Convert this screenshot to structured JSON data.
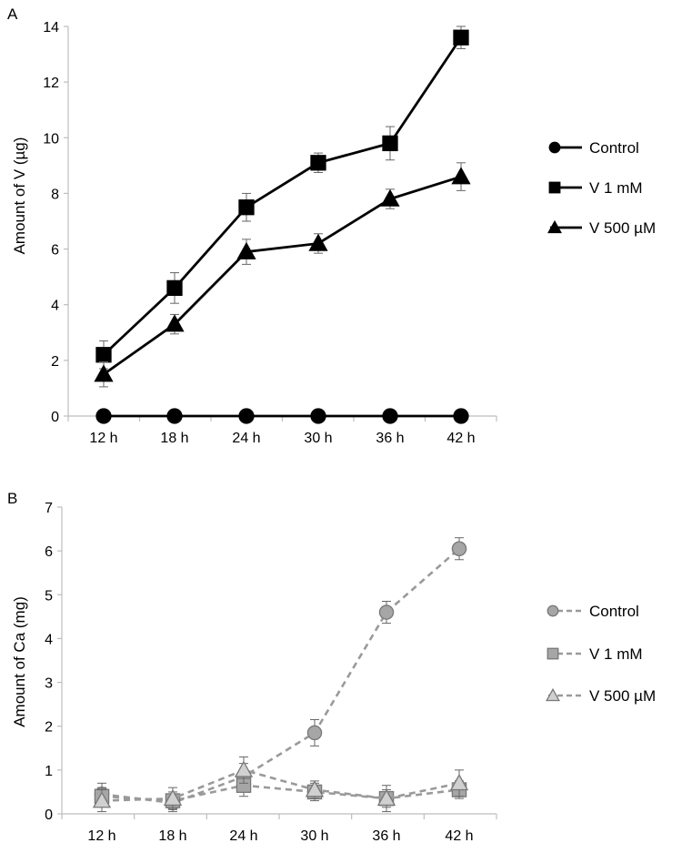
{
  "chart_data": [
    {
      "type": "line",
      "panel_label": "A",
      "ylabel": "Amount of V  (µg)",
      "categories": [
        "12 h",
        "18 h",
        "24 h",
        "30 h",
        "36 h",
        "42 h"
      ],
      "ylim": [
        0,
        14
      ],
      "yticks": [
        "0",
        "2",
        "4",
        "6",
        "8",
        "10",
        "12",
        "14"
      ],
      "legend_position": "right",
      "series": [
        {
          "name": "Control",
          "marker": "circle",
          "line": "solid",
          "color": "#000000",
          "fill": "#000000",
          "values": [
            0,
            0,
            0,
            0,
            0,
            0
          ],
          "errors": [
            0,
            0,
            0,
            0,
            0,
            0
          ]
        },
        {
          "name": "V 1 mM",
          "marker": "square",
          "line": "solid",
          "color": "#000000",
          "fill": "#000000",
          "values": [
            2.2,
            4.6,
            7.5,
            9.1,
            9.8,
            13.6
          ],
          "errors": [
            0.5,
            0.55,
            0.5,
            0.35,
            0.6,
            0.4
          ]
        },
        {
          "name": "V 500 µM",
          "marker": "triangle",
          "line": "solid",
          "color": "#000000",
          "fill": "#000000",
          "values": [
            1.5,
            3.3,
            5.9,
            6.2,
            7.8,
            8.6
          ],
          "errors": [
            0.45,
            0.35,
            0.45,
            0.35,
            0.35,
            0.5
          ]
        }
      ]
    },
    {
      "type": "line",
      "panel_label": "B",
      "ylabel": "Amount of Ca (mg)",
      "categories": [
        "12 h",
        "18 h",
        "24 h",
        "30 h",
        "36 h",
        "42 h"
      ],
      "ylim": [
        0,
        7
      ],
      "yticks": [
        "0",
        "1",
        "2",
        "3",
        "4",
        "5",
        "6",
        "7"
      ],
      "legend_position": "right",
      "series": [
        {
          "name": "Control",
          "marker": "circle",
          "line": "dashed",
          "color": "#9a9a9a",
          "fill": "#a6a6a6",
          "values": [
            0.45,
            0.25,
            0.85,
            1.85,
            4.6,
            6.05
          ],
          "errors": [
            0.25,
            0.2,
            0.3,
            0.3,
            0.25,
            0.25
          ]
        },
        {
          "name": "V 1 mM",
          "marker": "square",
          "line": "dashed",
          "color": "#9a9a9a",
          "fill": "#a6a6a6",
          "values": [
            0.4,
            0.3,
            0.65,
            0.5,
            0.35,
            0.55
          ],
          "errors": [
            0.2,
            0.2,
            0.25,
            0.2,
            0.2,
            0.2
          ]
        },
        {
          "name": "V 500 µM",
          "marker": "triangle",
          "line": "dashed",
          "color": "#9a9a9a",
          "fill": "#d0d0d0",
          "values": [
            0.3,
            0.35,
            1.0,
            0.55,
            0.35,
            0.7
          ],
          "errors": [
            0.25,
            0.25,
            0.3,
            0.2,
            0.3,
            0.3
          ]
        }
      ]
    }
  ]
}
